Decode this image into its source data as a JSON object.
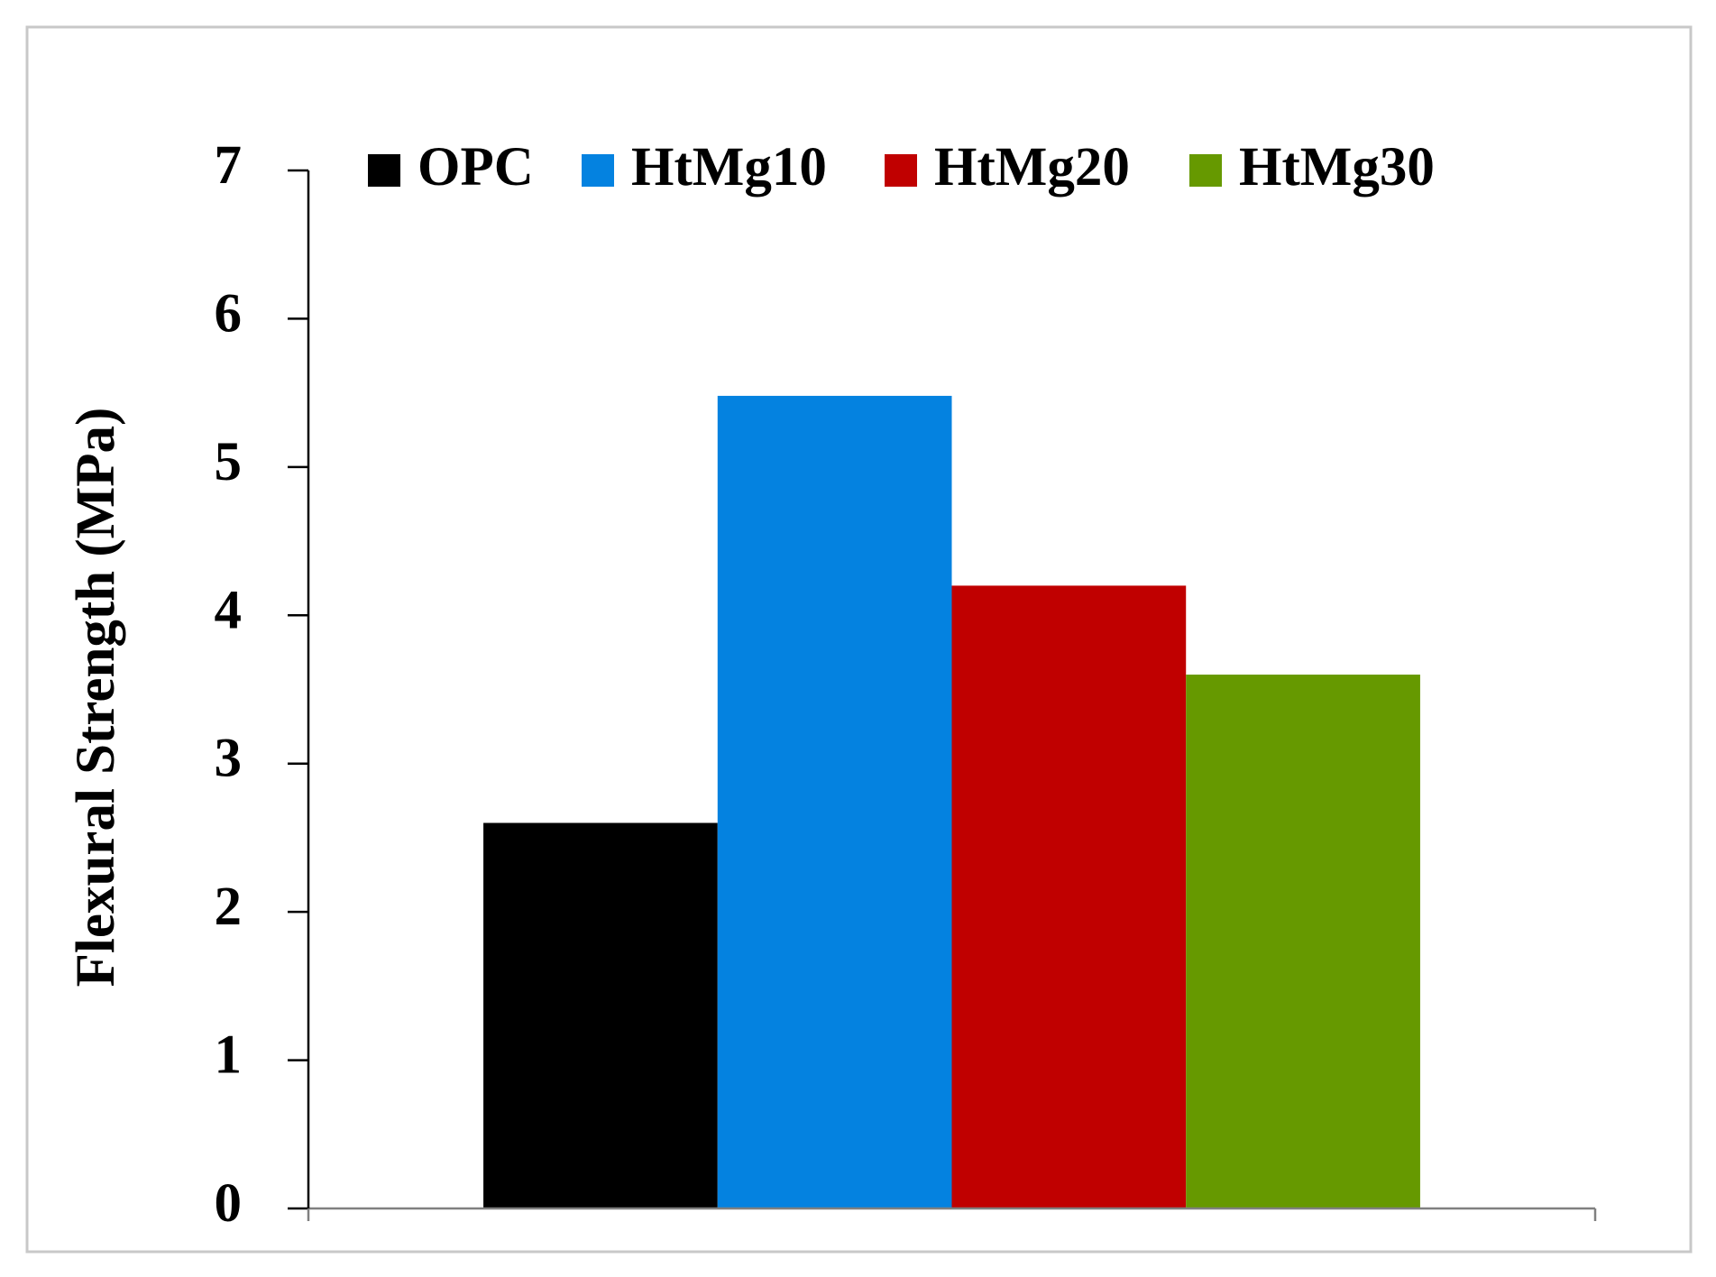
{
  "chart_data": {
    "type": "bar",
    "y_label": "Flexural Strength (MPa)",
    "categories": [
      null
    ],
    "series": [
      {
        "name": "OPC",
        "color": "#000000",
        "values": [
          2.6
        ]
      },
      {
        "name": "HtMg10",
        "color": "#0482e0",
        "values": [
          5.48
        ]
      },
      {
        "name": "HtMg20",
        "color": "#c00000",
        "values": [
          4.2
        ]
      },
      {
        "name": "HtMg30",
        "color": "#669900",
        "values": [
          3.6
        ]
      }
    ],
    "ylim": [
      0,
      7
    ],
    "yticks": [
      0,
      1,
      2,
      3,
      4,
      5,
      6,
      7
    ],
    "grid": false,
    "legend": "top"
  }
}
